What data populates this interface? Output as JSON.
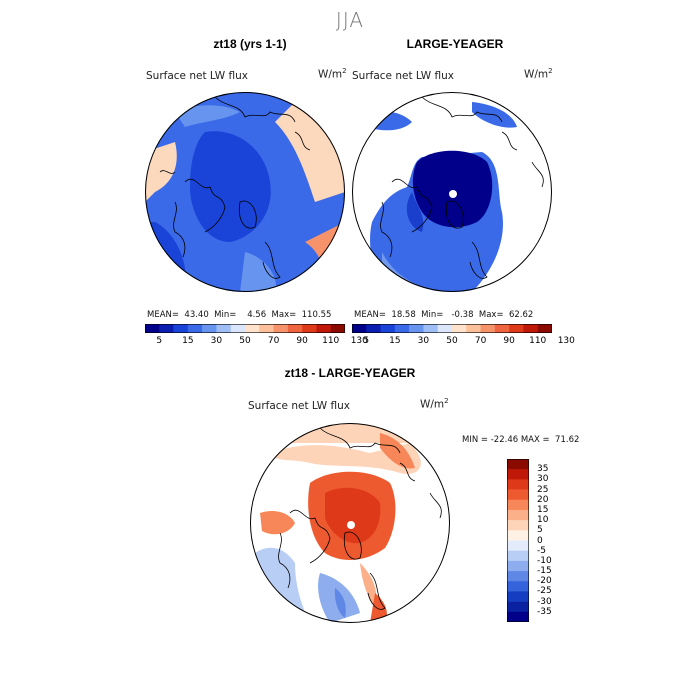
{
  "season": "JJA",
  "variable": "Surface net LW flux",
  "units_base": "W/m",
  "units_exp": "2",
  "panels": [
    {
      "title": "zt18 (yrs 1-1)",
      "mean_label": "MEAN=",
      "mean": "43.40",
      "min_label": "Min=",
      "min": "4.56",
      "max_label": "Max=",
      "max": "110.55"
    },
    {
      "title": "LARGE-YEAGER",
      "mean_label": "MEAN=",
      "mean": "18.58",
      "min_label": "Min=",
      "min": "-0.38",
      "max_label": "Max=",
      "max": "62.62"
    }
  ],
  "diff": {
    "title": "zt18 - LARGE-YEAGER",
    "min_label": "MIN =",
    "min": "-22.46",
    "max_label": "MAX =",
    "max": "71.62"
  },
  "colorbar_top": {
    "colors": [
      "#00008b",
      "#0a1fb0",
      "#1a44d8",
      "#3a6ae8",
      "#6694ee",
      "#9fbef5",
      "#dbe6fa",
      "#ffe3cc",
      "#fcc09a",
      "#f7936a",
      "#ee6540",
      "#de3a1a",
      "#c01808",
      "#8b0a00"
    ],
    "tick_labels": [
      "5",
      "15",
      "30",
      "50",
      "70",
      "90",
      "110",
      "130"
    ]
  },
  "colorbar_diff": {
    "colors": [
      "#8b0a00",
      "#c01808",
      "#de3a1a",
      "#ee5a30",
      "#f78758",
      "#fbb08a",
      "#fdd4b8",
      "#fff2e4",
      "#e4ecfb",
      "#b9cef5",
      "#8dadee",
      "#5f87e6",
      "#3463dc",
      "#143dc2",
      "#0a22a2",
      "#00008b"
    ],
    "tick_labels": [
      "35",
      "30",
      "25",
      "20",
      "15",
      "10",
      "5",
      "0",
      "-5",
      "-10",
      "-15",
      "-20",
      "-25",
      "-30",
      "-35"
    ]
  },
  "map_colors": {
    "land": "#ffffff",
    "coast": "#000000",
    "p1_blue_dark": "#1a44d8",
    "p1_blue_mid": "#3a6ae8",
    "p1_blue_light": "#6694ee",
    "p1_warm_light": "#fcd8bd",
    "p1_warm_mid": "#f7936a",
    "p1_warm_dark": "#ee5a30",
    "p2_navy": "#00008b",
    "p2_blue": "#1a3fcc",
    "p2_blue_mid": "#3a6ae8",
    "p2_blue_light": "#6f98ee",
    "d_red_dark": "#de3a1a",
    "d_red": "#ee5a30",
    "d_orange": "#f78758",
    "d_peach": "#fbb08a",
    "d_cream": "#fdd4b8",
    "d_blue_light": "#b9cef5",
    "d_blue": "#8dadee",
    "d_blue_dark": "#5f87e6"
  }
}
